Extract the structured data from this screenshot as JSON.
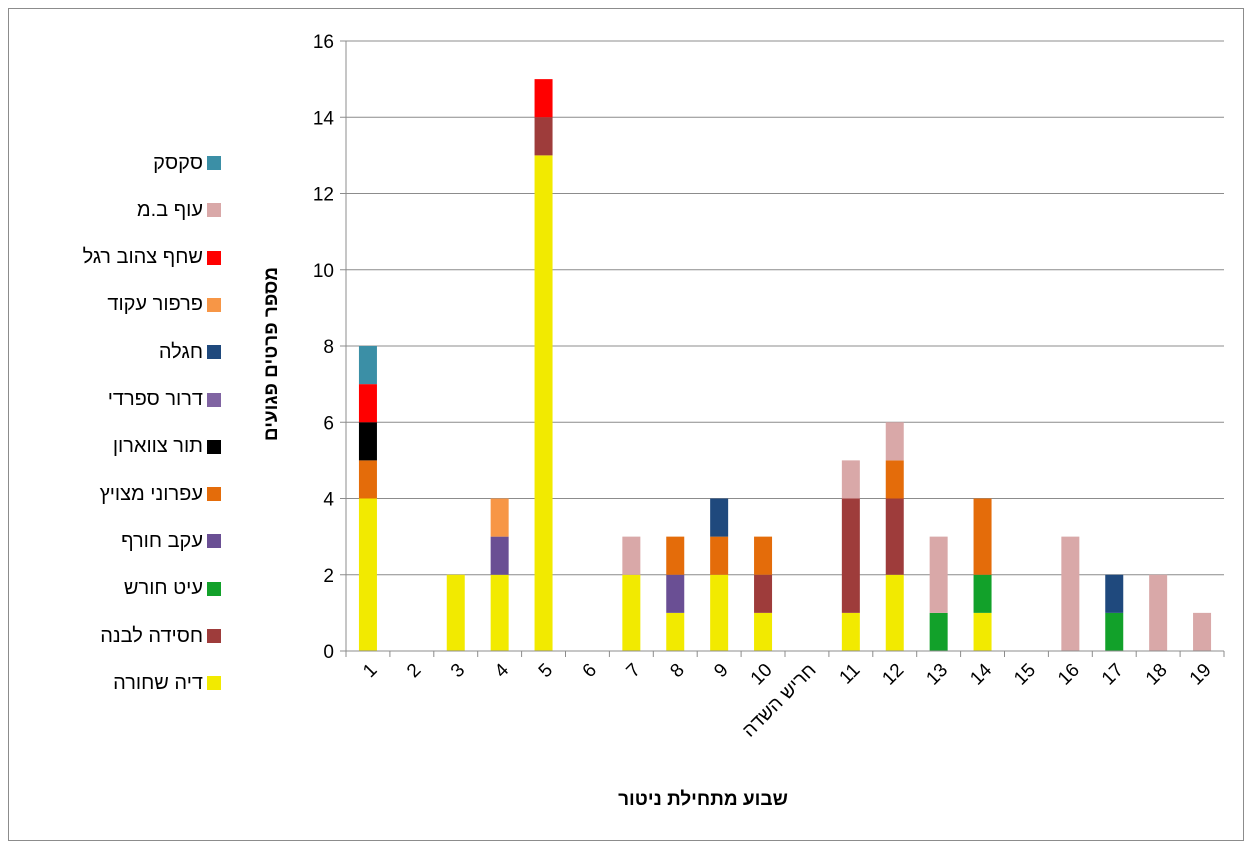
{
  "chart_data": {
    "type": "bar",
    "stacked": true,
    "title": "",
    "xlabel": "שבוע מתחילת ניטור",
    "ylabel": "מספר פרטים פגועים",
    "ylim": [
      0,
      16
    ],
    "yticks": [
      "0",
      "2",
      "4",
      "6",
      "8",
      "10",
      "12",
      "14",
      "16"
    ],
    "grid": true,
    "legend_position": "left",
    "categories": [
      "1",
      "2",
      "3",
      "4",
      "5",
      "6",
      "7",
      "8",
      "9",
      "10",
      "חריש השדה",
      "11",
      "12",
      "13",
      "14",
      "15",
      "16",
      "17",
      "18",
      "19"
    ],
    "series": [
      {
        "name": "דיה שחורה",
        "color": "#f2ea00",
        "values": [
          4,
          0,
          2,
          2,
          13,
          0,
          2,
          1,
          2,
          1,
          0,
          1,
          2,
          0,
          1,
          0,
          0,
          0,
          0,
          0
        ]
      },
      {
        "name": "חסידה לבנה",
        "color": "#9e3c3b",
        "values": [
          0,
          0,
          0,
          0,
          1,
          0,
          0,
          0,
          0,
          1,
          0,
          3,
          2,
          0,
          0,
          0,
          0,
          0,
          0,
          0
        ]
      },
      {
        "name": "עיט חורש",
        "color": "#12a12a",
        "values": [
          0,
          0,
          0,
          0,
          0,
          0,
          0,
          0,
          0,
          0,
          0,
          0,
          0,
          1,
          1,
          0,
          0,
          1,
          0,
          0
        ]
      },
      {
        "name": "עקב חורף",
        "color": "#6a4f94",
        "values": [
          0,
          0,
          0,
          1,
          0,
          0,
          0,
          1,
          0,
          0,
          0,
          0,
          0,
          0,
          0,
          0,
          0,
          0,
          0,
          0
        ]
      },
      {
        "name": "עפרוני מצויץ",
        "color": "#e46c0a",
        "values": [
          1,
          0,
          0,
          0,
          0,
          0,
          0,
          1,
          1,
          1,
          0,
          0,
          1,
          0,
          2,
          0,
          0,
          0,
          0,
          0
        ]
      },
      {
        "name": "תור צווארון",
        "color": "#000000",
        "values": [
          1,
          0,
          0,
          0,
          0,
          0,
          0,
          0,
          0,
          0,
          0,
          0,
          0,
          0,
          0,
          0,
          0,
          0,
          0,
          0
        ]
      },
      {
        "name": "דרור ספרדי",
        "color": "#8064a2",
        "values": [
          0,
          0,
          0,
          0,
          0,
          0,
          0,
          0,
          0,
          0,
          0,
          0,
          0,
          0,
          0,
          0,
          0,
          0,
          0,
          0
        ]
      },
      {
        "name": "חגלה",
        "color": "#1f497d",
        "values": [
          0,
          0,
          0,
          0,
          0,
          0,
          0,
          0,
          1,
          0,
          0,
          0,
          0,
          0,
          0,
          0,
          0,
          1,
          0,
          0
        ]
      },
      {
        "name": "פרפור עקוד",
        "color": "#f79646",
        "values": [
          0,
          0,
          0,
          1,
          0,
          0,
          0,
          0,
          0,
          0,
          0,
          0,
          0,
          0,
          0,
          0,
          0,
          0,
          0,
          0
        ]
      },
      {
        "name": "שחף צהוב רגל",
        "color": "#ff0000",
        "values": [
          1,
          0,
          0,
          0,
          1,
          0,
          0,
          0,
          0,
          0,
          0,
          0,
          0,
          0,
          0,
          0,
          0,
          0,
          0,
          0
        ]
      },
      {
        "name": "עוף ב.מ",
        "color": "#d9a8a8",
        "values": [
          0,
          0,
          0,
          0,
          0,
          0,
          1,
          0,
          0,
          0,
          0,
          1,
          1,
          2,
          0,
          0,
          3,
          0,
          2,
          1
        ]
      },
      {
        "name": "סקסק",
        "color": "#3b8fa6",
        "values": [
          1,
          0,
          0,
          0,
          0,
          0,
          0,
          0,
          0,
          0,
          0,
          0,
          0,
          0,
          0,
          0,
          0,
          0,
          0,
          0
        ]
      }
    ]
  }
}
